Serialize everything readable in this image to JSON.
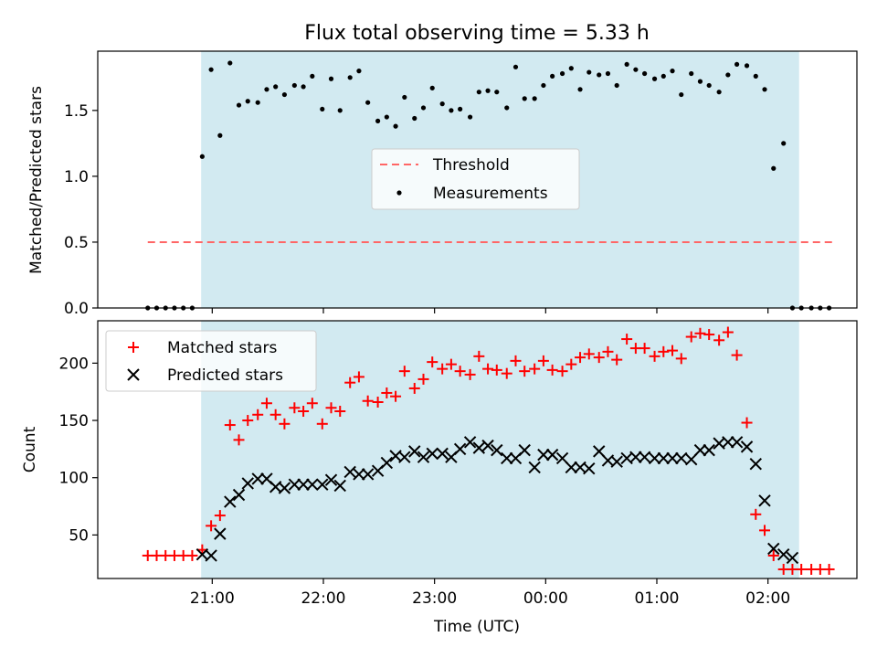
{
  "chart_data": {
    "type": "scatter",
    "title": "Flux total observing time = 5.33 h",
    "xlabel": "Time (UTC)",
    "xticks": [
      "21:00",
      "22:00",
      "23:00",
      "00:00",
      "01:00",
      "02:00"
    ],
    "xlim_hours": [
      19.97,
      26.8
    ],
    "observing_window_hours": [
      20.9,
      26.28
    ],
    "window_color": "#add8e6",
    "panels": [
      {
        "ylabel": "Matched/Predicted stars",
        "ylim": [
          0,
          1.95
        ],
        "yticks": [
          "0.0",
          "0.5",
          "1.0",
          "1.5"
        ],
        "series": [
          {
            "name": "Threshold",
            "style": "dashed-line",
            "color": "#ff6666",
            "x": [
              20.42,
              26.59
            ],
            "y": [
              0.5,
              0.5
            ]
          },
          {
            "name": "Measurements",
            "style": "dot",
            "color": "#000000",
            "x": [
              20.42,
              20.5,
              20.58,
              20.66,
              20.74,
              20.82,
              20.91,
              20.99,
              21.07,
              21.16,
              21.24,
              21.32,
              21.41,
              21.49,
              21.57,
              21.65,
              21.74,
              21.82,
              21.9,
              21.99,
              22.07,
              22.15,
              22.24,
              22.32,
              22.4,
              22.49,
              22.57,
              22.65,
              22.73,
              22.82,
              22.9,
              22.98,
              23.07,
              23.15,
              23.23,
              23.32,
              23.4,
              23.48,
              23.56,
              23.65,
              23.73,
              23.81,
              23.9,
              23.98,
              24.06,
              24.15,
              24.23,
              24.31,
              24.39,
              24.48,
              24.56,
              24.64,
              24.73,
              24.81,
              24.89,
              24.98,
              25.06,
              25.14,
              25.22,
              25.31,
              25.39,
              25.47,
              25.56,
              25.64,
              25.72,
              25.81,
              25.89,
              25.97,
              26.05,
              26.14,
              26.22,
              26.3,
              26.39,
              26.47,
              26.55
            ],
            "y": [
              0,
              0,
              0,
              0,
              0,
              0,
              1.15,
              1.81,
              1.31,
              1.86,
              1.54,
              1.57,
              1.56,
              1.66,
              1.68,
              1.62,
              1.69,
              1.68,
              1.76,
              1.51,
              1.74,
              1.5,
              1.75,
              1.8,
              1.56,
              1.42,
              1.45,
              1.38,
              1.6,
              1.44,
              1.52,
              1.67,
              1.55,
              1.5,
              1.51,
              1.45,
              1.64,
              1.65,
              1.64,
              1.52,
              1.83,
              1.59,
              1.59,
              1.69,
              1.76,
              1.78,
              1.82,
              1.66,
              1.79,
              1.77,
              1.78,
              1.69,
              1.85,
              1.81,
              1.78,
              1.74,
              1.76,
              1.8,
              1.62,
              1.78,
              1.72,
              1.69,
              1.64,
              1.77,
              1.85,
              1.84,
              1.76,
              1.66,
              1.06,
              1.25,
              0,
              0,
              0,
              0,
              0
            ]
          }
        ]
      },
      {
        "ylabel": "Count",
        "ylim": [
          12,
          237
        ],
        "yticks": [
          "50",
          "100",
          "150",
          "200"
        ],
        "series": [
          {
            "name": "Matched stars",
            "style": "plus",
            "color": "#ff0000",
            "x": [
              20.42,
              20.5,
              20.58,
              20.66,
              20.74,
              20.82,
              20.91,
              20.99,
              21.07,
              21.16,
              21.24,
              21.32,
              21.41,
              21.49,
              21.57,
              21.65,
              21.74,
              21.82,
              21.9,
              21.99,
              22.07,
              22.15,
              22.24,
              22.32,
              22.4,
              22.49,
              22.57,
              22.65,
              22.73,
              22.82,
              22.9,
              22.98,
              23.07,
              23.15,
              23.23,
              23.32,
              23.4,
              23.48,
              23.56,
              23.65,
              23.73,
              23.81,
              23.9,
              23.98,
              24.06,
              24.15,
              24.23,
              24.31,
              24.39,
              24.48,
              24.56,
              24.64,
              24.73,
              24.81,
              24.89,
              24.98,
              25.06,
              25.14,
              25.22,
              25.31,
              25.39,
              25.47,
              25.56,
              25.64,
              25.72,
              25.81,
              25.89,
              25.97,
              26.05,
              26.14,
              26.22,
              26.3,
              26.39,
              26.47,
              26.55
            ],
            "y": [
              32,
              32,
              32,
              32,
              32,
              32,
              37,
              58,
              67,
              146,
              133,
              150,
              155,
              165,
              155,
              147,
              161,
              158,
              165,
              147,
              161,
              158,
              183,
              188,
              167,
              166,
              174,
              171,
              193,
              178,
              186,
              201,
              195,
              199,
              193,
              190,
              206,
              195,
              194,
              191,
              202,
              193,
              195,
              202,
              194,
              193,
              199,
              205,
              208,
              205,
              210,
              203,
              221,
              213,
              213,
              206,
              210,
              211,
              204,
              223,
              226,
              225,
              220,
              227,
              207,
              148,
              68,
              54,
              32,
              20,
              20,
              20,
              20,
              20,
              20
            ]
          },
          {
            "name": "Predicted stars",
            "style": "x",
            "color": "#000000",
            "x": [
              20.91,
              20.99,
              21.07,
              21.16,
              21.24,
              21.32,
              21.41,
              21.49,
              21.57,
              21.65,
              21.74,
              21.82,
              21.9,
              21.99,
              22.07,
              22.15,
              22.24,
              22.32,
              22.4,
              22.49,
              22.57,
              22.65,
              22.73,
              22.82,
              22.9,
              22.98,
              23.07,
              23.15,
              23.23,
              23.32,
              23.4,
              23.48,
              23.56,
              23.65,
              23.73,
              23.81,
              23.9,
              23.98,
              24.06,
              24.15,
              24.23,
              24.31,
              24.39,
              24.48,
              24.56,
              24.64,
              24.73,
              24.81,
              24.89,
              24.98,
              25.06,
              25.14,
              25.22,
              25.31,
              25.39,
              25.47,
              25.56,
              25.64,
              25.72,
              25.81,
              25.89,
              25.97,
              26.05,
              26.14,
              26.22
            ],
            "y": [
              33,
              32,
              51,
              79,
              85,
              95,
              99,
              99,
              92,
              91,
              94,
              94,
              94,
              94,
              98,
              93,
              105,
              103,
              103,
              106,
              113,
              119,
              118,
              123,
              118,
              121,
              121,
              118,
              125,
              131,
              126,
              128,
              124,
              117,
              117,
              124,
              109,
              120,
              120,
              117,
              109,
              109,
              108,
              123,
              115,
              114,
              117,
              118,
              118,
              117,
              117,
              117,
              117,
              116,
              124,
              124,
              130,
              131,
              131,
              127,
              112,
              80,
              38,
              33,
              30
            ]
          }
        ]
      }
    ]
  }
}
